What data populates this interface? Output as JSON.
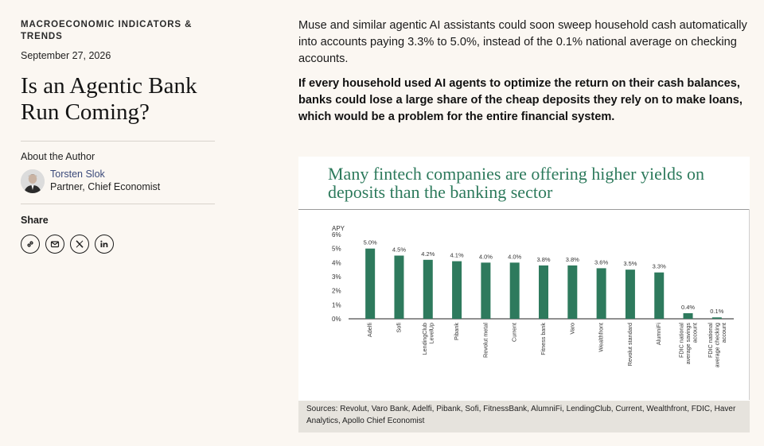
{
  "sidebar": {
    "category": "MACROECONOMIC INDICATORS & TRENDS",
    "date": "September 27, 2026",
    "title": "Is an Agentic Bank Run Coming?",
    "about_label": "About the Author",
    "author": {
      "name": "Torsten Slok",
      "role": "Partner, Chief Economist"
    },
    "share_label": "Share",
    "share_icons": [
      "link-icon",
      "email-icon",
      "x-icon",
      "linkedin-icon"
    ]
  },
  "article": {
    "lead": "Muse and similar agentic AI assistants could soon sweep household cash automatically into accounts paying 3.3% to 5.0%, instead of the 0.1% national average on checking accounts.",
    "bold_lead": "If every household used AI agents to optimize the return on their cash balances, banks could lose a large share of the cheap deposits they rely on to make loans, which would be a problem for the entire financial system."
  },
  "chart_data": {
    "type": "bar",
    "title": "Many fintech companies are offering higher yields on deposits than the banking sector",
    "ylabel": "APY",
    "ylim": [
      0,
      6
    ],
    "yticks": [
      "0%",
      "1%",
      "2%",
      "3%",
      "4%",
      "5%",
      "6%"
    ],
    "categories": [
      "Adelfi",
      "Sofi",
      "LendingClub LevelUp",
      "Pibank",
      "Revolut metal",
      "Current",
      "Fitness bank",
      "Varo",
      "Wealthfront",
      "Revolut standard",
      "AlumniFi",
      "FDIC national average savings account",
      "FDIC national average checking account"
    ],
    "category_lines": [
      [
        "Adelfi"
      ],
      [
        "Sofi"
      ],
      [
        "LendingClub",
        "LevelUp"
      ],
      [
        "Pibank"
      ],
      [
        "Revolut metal"
      ],
      [
        "Current"
      ],
      [
        "Fitness bank"
      ],
      [
        "Varo"
      ],
      [
        "Wealthfront"
      ],
      [
        "Revolut standard"
      ],
      [
        "AlumniFi"
      ],
      [
        "FDIC national",
        "average savings",
        "account"
      ],
      [
        "FDIC national",
        "average checking",
        "account"
      ]
    ],
    "values": [
      5.0,
      4.5,
      4.2,
      4.1,
      4.0,
      4.0,
      3.8,
      3.8,
      3.6,
      3.5,
      3.3,
      0.4,
      0.1
    ],
    "value_labels": [
      "5.0%",
      "4.5%",
      "4.2%",
      "4.1%",
      "4.0%",
      "4.0%",
      "3.8%",
      "3.8%",
      "3.6%",
      "3.5%",
      "3.3%",
      "0.4%",
      "0.1%"
    ],
    "bar_color": "#2e7a5d",
    "grid": false,
    "sources": "Sources: Revolut, Varo Bank, Adelfi, Pibank, Sofi, FitnessBank, AlumniFi, LendingClub, Current, Wealthfront, FDIC, Haver Analytics, Apollo Chief Economist"
  }
}
